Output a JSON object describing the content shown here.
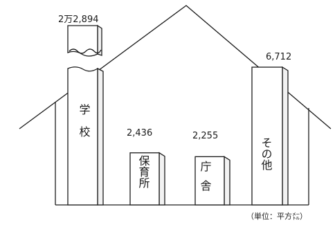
{
  "chart_data": {
    "type": "bar",
    "categories": [
      "学校",
      "保育所",
      "庁舎",
      "その他"
    ],
    "values": [
      22894,
      2436,
      2255,
      6712
    ],
    "value_labels": [
      "2万2,894",
      "2,436",
      "2,255",
      "6,712"
    ],
    "unit_note": "（単位：平方㍍）",
    "title": "",
    "xlabel": "",
    "ylabel": "",
    "axis_break": true,
    "grid": false,
    "legend": "none"
  }
}
